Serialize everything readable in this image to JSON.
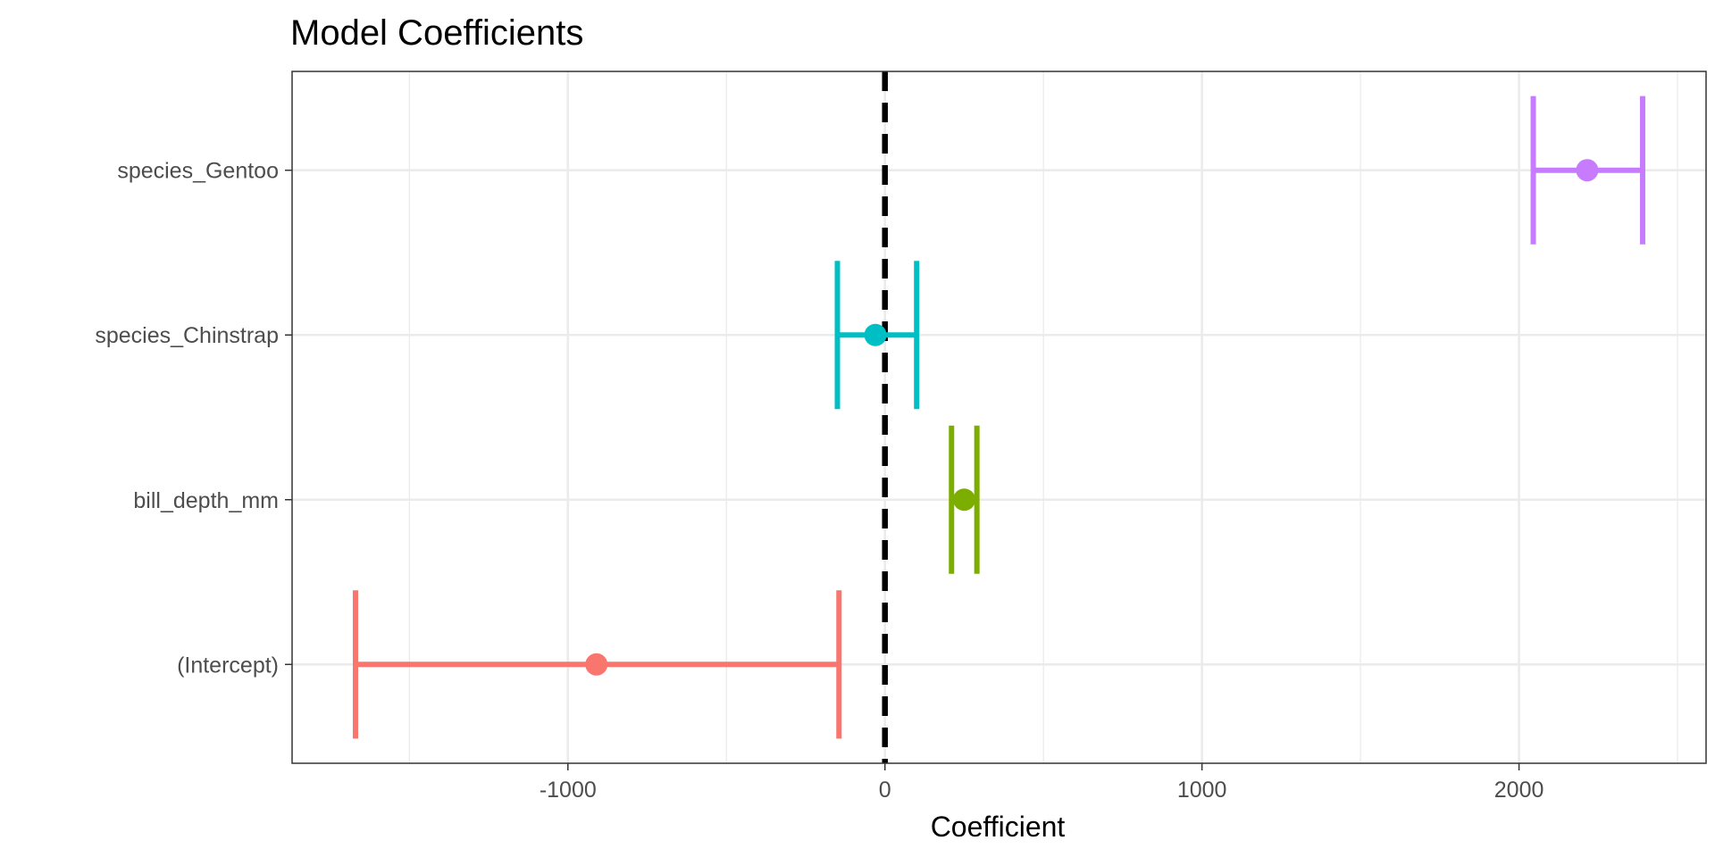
{
  "chart_data": {
    "type": "coefficient-plot",
    "title": "Model Coefficients",
    "xlabel": "Coefficient",
    "ylabel": "",
    "xlim": [
      -1870,
      2590
    ],
    "x_ticks": [
      -1000,
      0,
      1000,
      2000
    ],
    "x_tick_labels": [
      "-1000",
      "0",
      "1000",
      "2000"
    ],
    "x_minor_ticks": [
      -1500,
      -500,
      500,
      1500,
      2500
    ],
    "reference_line": 0,
    "grid": true,
    "categories": [
      "(Intercept)",
      "bill_depth_mm",
      "species_Chinstrap",
      "species_Gentoo"
    ],
    "estimates": [
      -910,
      250,
      -30,
      2215
    ],
    "lower": [
      -1670,
      210,
      -150,
      2045
    ],
    "upper": [
      -145,
      290,
      100,
      2390
    ],
    "colors": [
      "#F8766D",
      "#7CAE00",
      "#00BFC4",
      "#C77CFF"
    ]
  }
}
